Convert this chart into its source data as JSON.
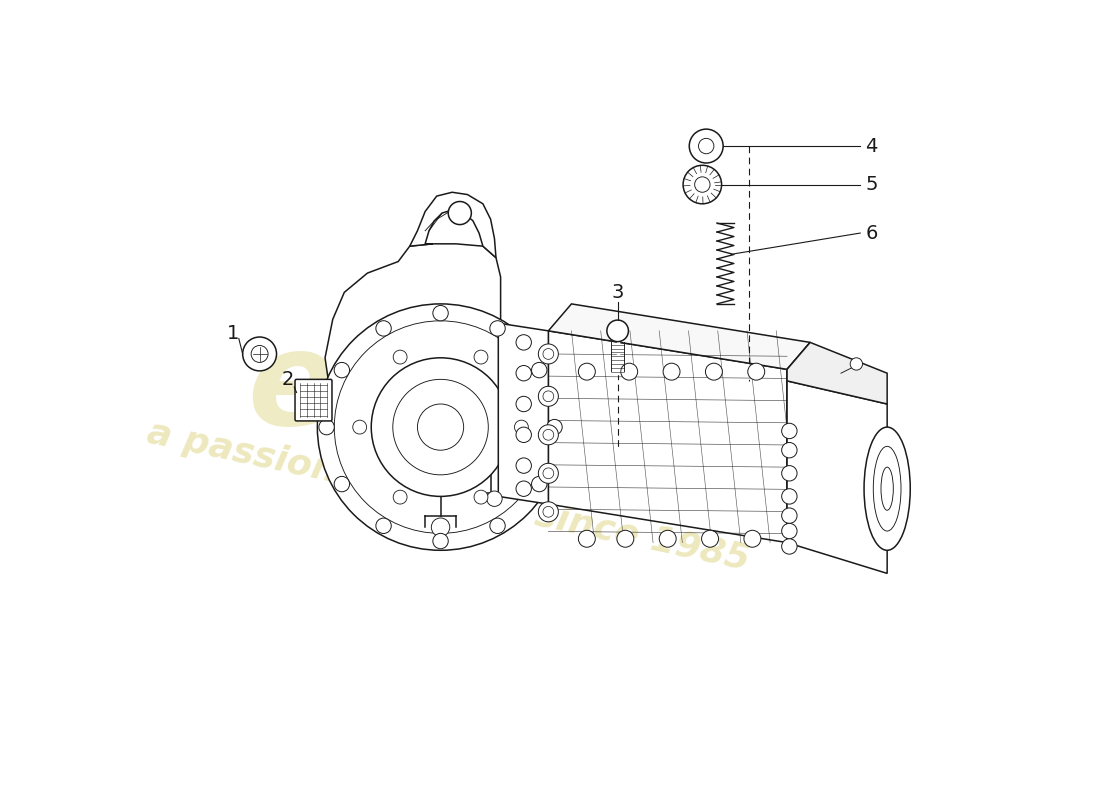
{
  "background_color": "#ffffff",
  "line_color": "#1a1a1a",
  "watermark_color": "#c8b830",
  "figsize": [
    11.0,
    8.0
  ],
  "dpi": 100,
  "labels": [
    "1",
    "2",
    "3",
    "4",
    "5",
    "6"
  ],
  "lw": 1.1,
  "lw_thin": 0.65
}
